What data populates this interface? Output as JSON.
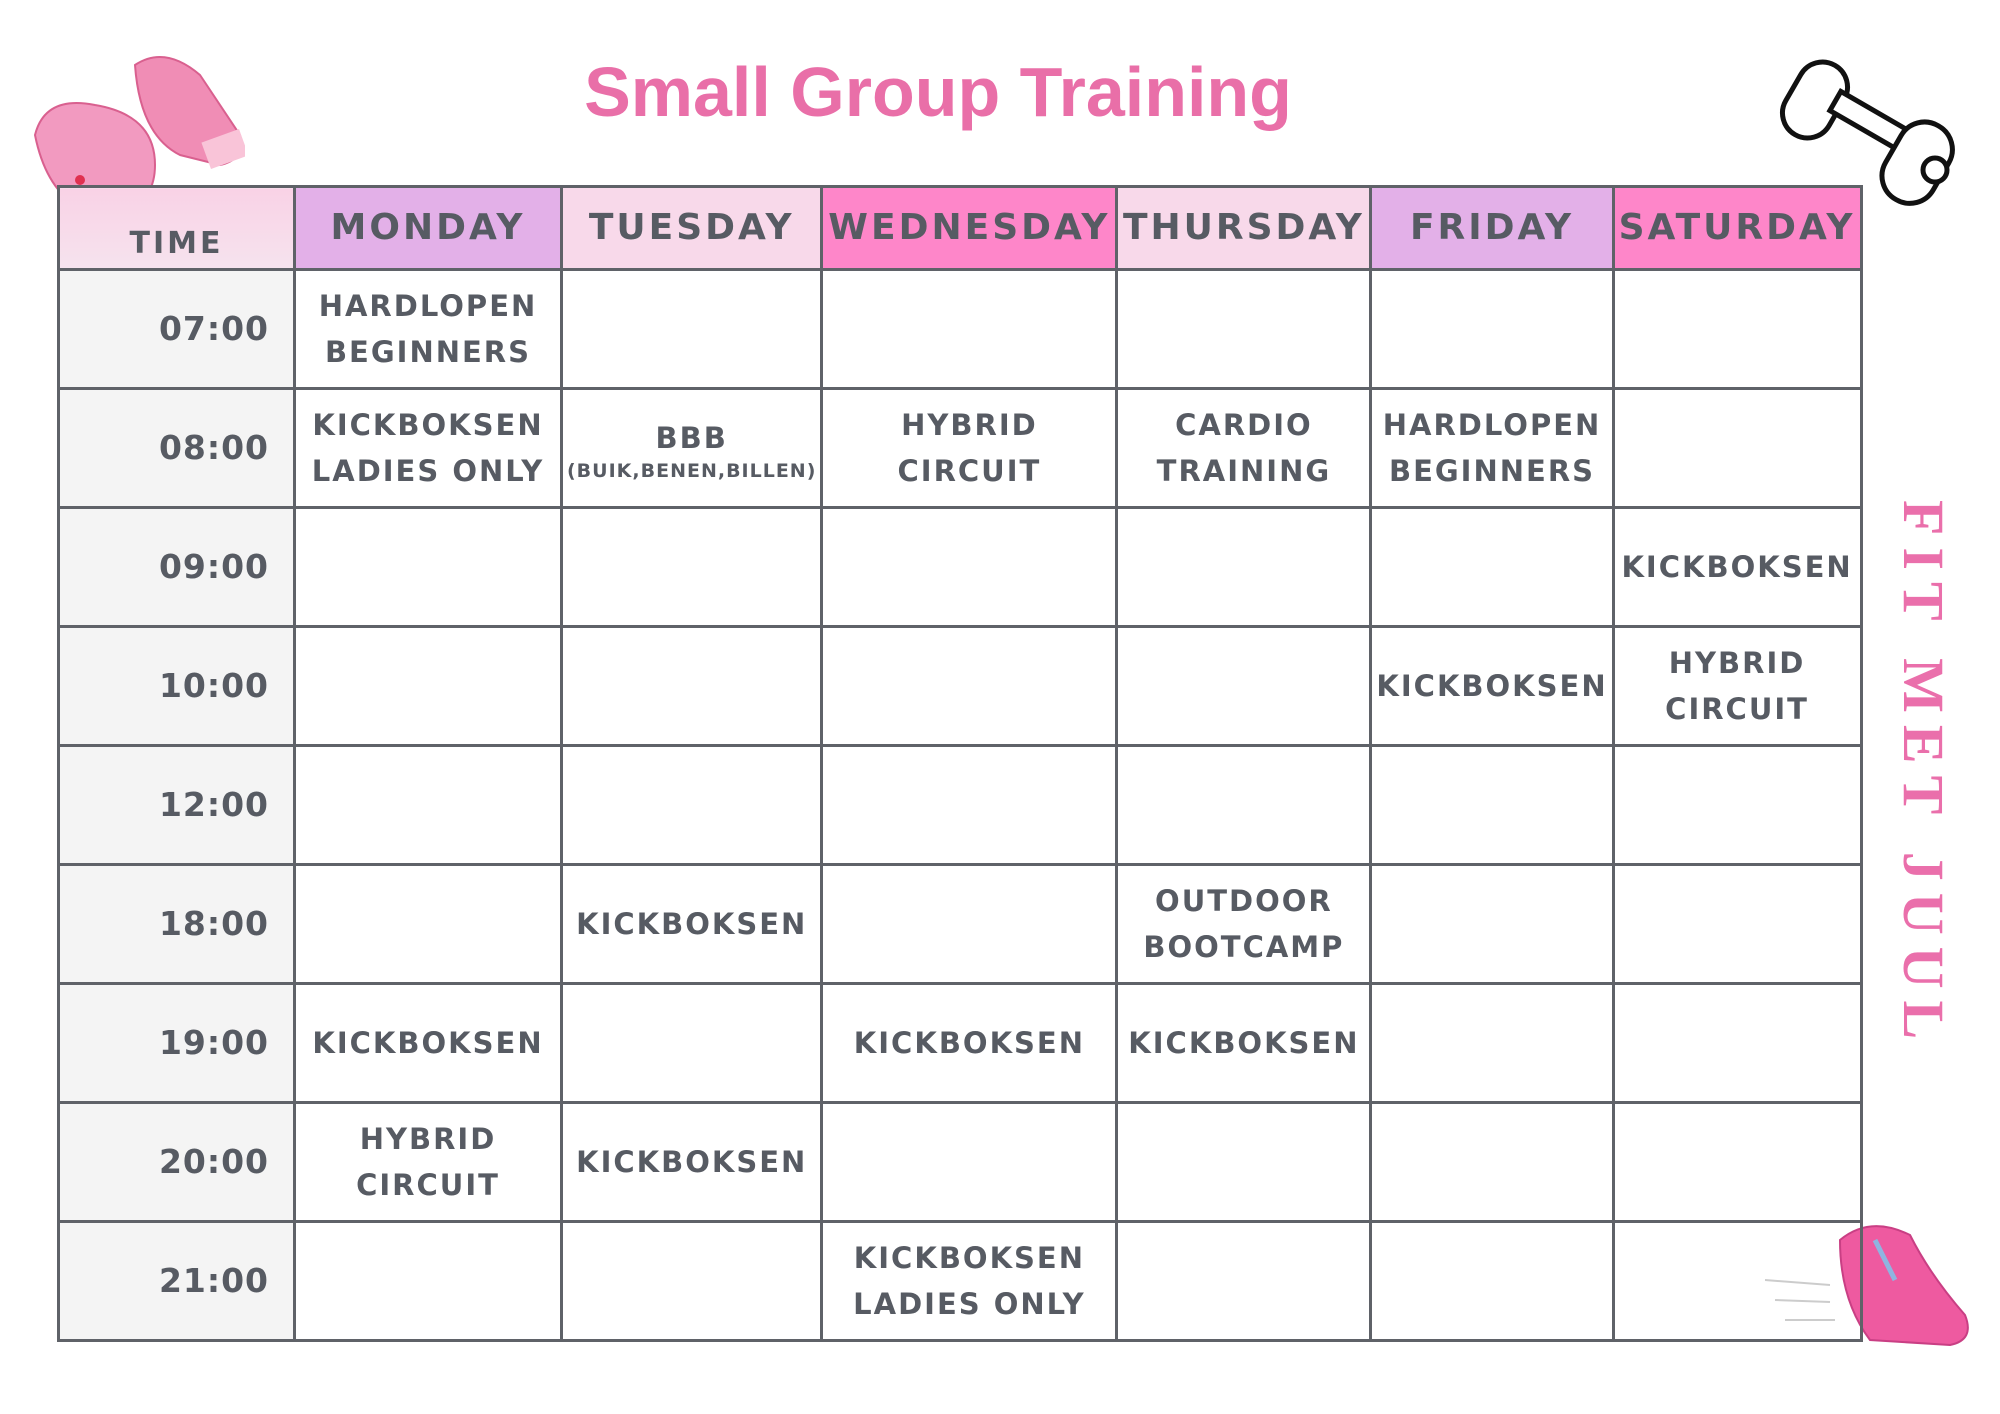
{
  "title": "Small Group Training",
  "brand": "FIT MET JUUL",
  "table": {
    "headers": [
      "TIME",
      "MONDAY",
      "TUESDAY",
      "WEDNESDAY",
      "THURSDAY",
      "FRIDAY",
      "SATURDAY"
    ],
    "rows": [
      [
        "07:00",
        [
          "HARDLOPEN",
          "BEGINNERS"
        ],
        null,
        null,
        null,
        null,
        null
      ],
      [
        "08:00",
        [
          "KICKBOKSEN",
          "LADIES ONLY"
        ],
        [
          "BBB",
          "(BUIK,BENEN,BILLEN)"
        ],
        [
          "HYBRID",
          "CIRCUIT"
        ],
        [
          "CARDIO",
          "TRAINING"
        ],
        [
          "HARDLOPEN",
          "BEGINNERS"
        ],
        null
      ],
      [
        "09:00",
        null,
        null,
        null,
        null,
        null,
        [
          "KICKBOKSEN"
        ]
      ],
      [
        "10:00",
        null,
        null,
        null,
        null,
        [
          "KICKBOKSEN"
        ],
        [
          "HYBRID",
          "CIRCUIT"
        ]
      ],
      [
        "12:00",
        null,
        null,
        null,
        null,
        null,
        null
      ],
      [
        "18:00",
        null,
        [
          "KICKBOKSEN"
        ],
        null,
        [
          "OUTDOOR",
          "BOOTCAMP"
        ],
        null,
        null
      ],
      [
        "19:00",
        [
          "KICKBOKSEN"
        ],
        null,
        [
          "KICKBOKSEN"
        ],
        [
          "KICKBOKSEN"
        ],
        null,
        null
      ],
      [
        "20:00",
        [
          "HYBRID",
          "CIRCUIT"
        ],
        [
          "KICKBOKSEN"
        ],
        null,
        null,
        null,
        null
      ],
      [
        "21:00",
        null,
        null,
        [
          "KICKBOKSEN",
          "LADIES ONLY"
        ],
        null,
        null,
        null
      ]
    ]
  }
}
